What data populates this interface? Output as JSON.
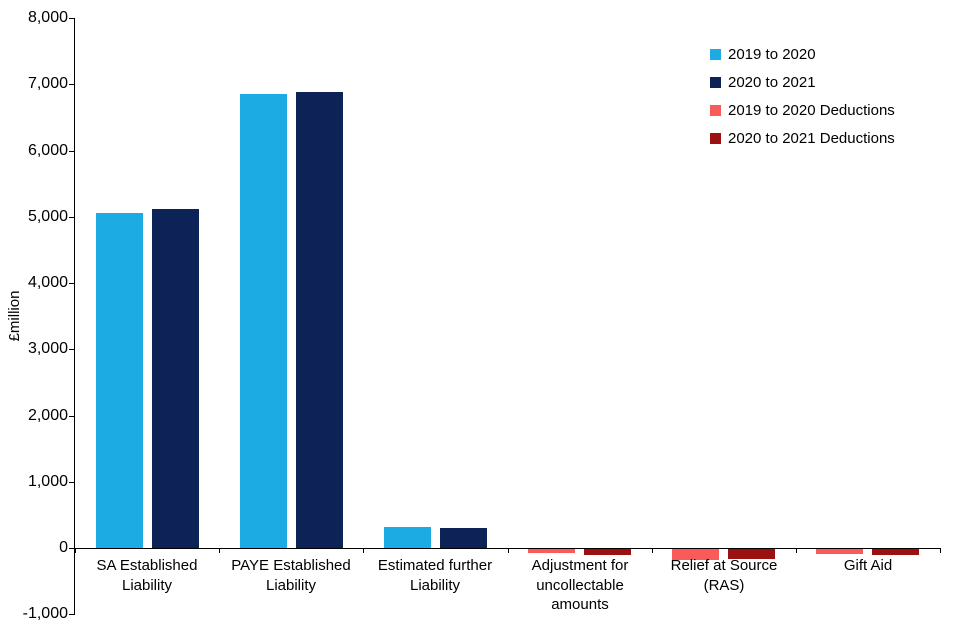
{
  "chart_data": {
    "type": "bar",
    "title": "",
    "ylabel": "£million",
    "ylim": [
      -1000,
      8000
    ],
    "ytick_step": 1000,
    "ytick_labels": [
      "8,000",
      "7,000",
      "6,000",
      "5,000",
      "4,000",
      "3,000",
      "2,000",
      "1,000",
      "0",
      "-1,000"
    ],
    "grid": false,
    "legend_position": "top-right",
    "categories": [
      "SA Established Liability",
      "PAYE Established Liability",
      "Estimated further Liability",
      "Adjustment for uncollectable amounts",
      "Relief at Source (RAS)",
      "Gift Aid"
    ],
    "category_label_lines": [
      [
        "SA Established",
        "Liability"
      ],
      [
        "PAYE Established",
        "Liability"
      ],
      [
        "Estimated further",
        "Liability"
      ],
      [
        "Adjustment for",
        "uncollectable",
        "amounts"
      ],
      [
        "Relief at Source",
        "(RAS)"
      ],
      [
        "Gift Aid"
      ]
    ],
    "series": [
      {
        "name": "2019 to 2020",
        "color": "#1CABE2",
        "values": [
          5050,
          6850,
          310,
          null,
          null,
          null
        ]
      },
      {
        "name": "2020 to 2021",
        "color": "#0D2357",
        "values": [
          5110,
          6890,
          300,
          null,
          null,
          null
        ]
      },
      {
        "name": "2019 to 2020 Deductions",
        "color": "#F95A5A",
        "values": [
          null,
          null,
          null,
          -60,
          -170,
          -80
        ]
      },
      {
        "name": "2020 to 2021 Deductions",
        "color": "#9B1010",
        "values": [
          null,
          null,
          null,
          -90,
          -150,
          -90
        ]
      }
    ]
  }
}
